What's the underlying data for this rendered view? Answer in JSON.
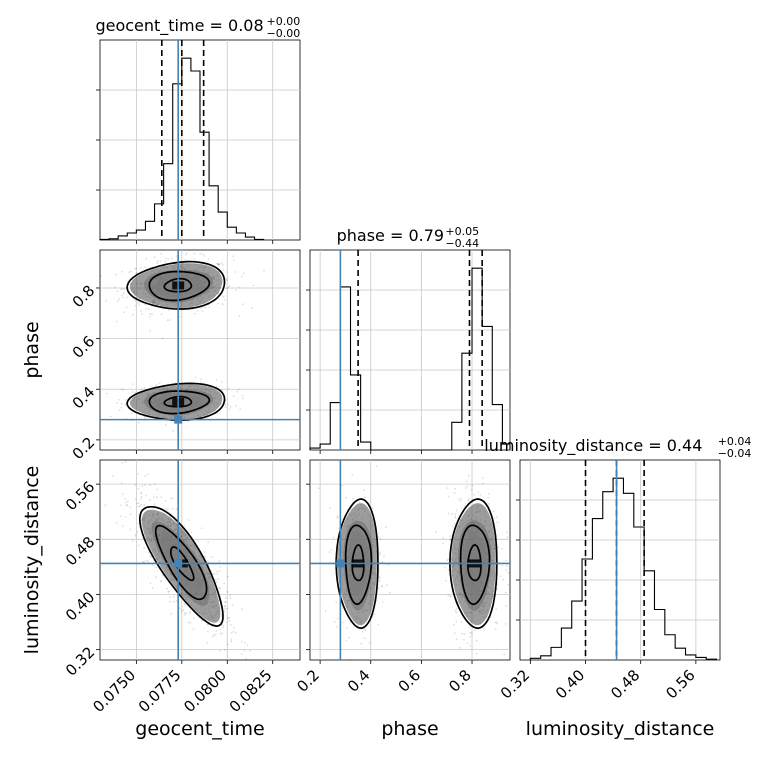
{
  "chart_data": {
    "type": "corner",
    "parameters": [
      "geocent_time",
      "phase",
      "luminosity_distance"
    ],
    "truths": {
      "geocent_time": 0.0773,
      "phase": 0.28,
      "luminosity_distance": 0.445
    },
    "truth_color": "#4682b4",
    "titles": [
      {
        "param": "geocent_time",
        "text": "geocent_time = 0.08",
        "sup": "+0.00",
        "sub": "−0.00"
      },
      {
        "param": "phase",
        "text": "phase = 0.79",
        "sup": "+0.05",
        "sub": "−0.44"
      },
      {
        "param": "luminosity_distance",
        "text": "luminosity_distance = 0.44",
        "sup": "+0.04",
        "sub": "−0.04"
      }
    ],
    "axes": {
      "geocent_time": {
        "label": "geocent_time",
        "range": [
          0.073,
          0.084
        ],
        "ticks": [
          0.075,
          0.0775,
          0.08,
          0.0825
        ],
        "tick_labels": [
          "0.0750",
          "0.0775",
          "0.0800",
          "0.0825"
        ]
      },
      "phase": {
        "label": "phase",
        "range": [
          0.16,
          0.95
        ],
        "ticks": [
          0.2,
          0.4,
          0.6,
          0.8
        ],
        "tick_labels": [
          "0.2",
          "0.4",
          "0.6",
          "0.8"
        ]
      },
      "luminosity_distance": {
        "label": "luminosity_distance",
        "range": [
          0.305,
          0.595
        ],
        "ticks": [
          0.32,
          0.4,
          0.48,
          0.56
        ],
        "tick_labels": [
          "0.32",
          "0.40",
          "0.48",
          "0.56"
        ]
      }
    },
    "quantile_lines": {
      "geocent_time": [
        0.0764,
        0.0775,
        0.0787
      ],
      "phase": [
        0.35,
        0.79,
        0.84
      ],
      "luminosity_distance": [
        0.4,
        0.445,
        0.485
      ]
    },
    "histograms": {
      "geocent_time": {
        "bin_edges": [
          0.073,
          0.0735,
          0.074,
          0.0745,
          0.075,
          0.0755,
          0.076,
          0.0765,
          0.077,
          0.0775,
          0.078,
          0.0785,
          0.079,
          0.0795,
          0.08,
          0.0805,
          0.081,
          0.0815,
          0.082
        ],
        "counts": [
          1,
          2,
          7,
          12,
          17,
          32,
          62,
          131,
          268,
          312,
          290,
          185,
          93,
          48,
          22,
          12,
          5,
          1
        ]
      },
      "phase": {
        "bin_edges": [
          0.16,
          0.2,
          0.24,
          0.28,
          0.32,
          0.36,
          0.4,
          0.44,
          0.48,
          0.52,
          0.56,
          0.6,
          0.64,
          0.68,
          0.72,
          0.76,
          0.8,
          0.84,
          0.88,
          0.92,
          0.95
        ],
        "counts": [
          2,
          6,
          48,
          165,
          76,
          8,
          0,
          0,
          0,
          0,
          0,
          0,
          0,
          0,
          28,
          98,
          184,
          125,
          46,
          6
        ]
      },
      "luminosity_distance": {
        "bin_edges": [
          0.32,
          0.335,
          0.35,
          0.365,
          0.38,
          0.395,
          0.41,
          0.425,
          0.44,
          0.455,
          0.47,
          0.485,
          0.5,
          0.515,
          0.53,
          0.545,
          0.56,
          0.575,
          0.59
        ],
        "counts": [
          2,
          5,
          15,
          38,
          70,
          120,
          168,
          200,
          216,
          198,
          158,
          106,
          60,
          30,
          14,
          6,
          3,
          1
        ]
      }
    },
    "contours": [
      {
        "x": "geocent_time",
        "y": "phase",
        "mode_center": [
          0.0773,
          0.81
        ],
        "mode_spread": [
          0.0013,
          0.045
        ],
        "mode_rho": 0.1,
        "mode_weight": 0.65
      },
      {
        "x": "geocent_time",
        "y": "phase",
        "mode_center": [
          0.0773,
          0.35
        ],
        "mode_spread": [
          0.0013,
          0.035
        ],
        "mode_rho": 0.1,
        "mode_weight": 0.35
      },
      {
        "x": "geocent_time",
        "y": "luminosity_distance",
        "mode_center": [
          0.0775,
          0.445
        ],
        "mode_spread": [
          0.0011,
          0.042
        ],
        "mode_rho": -0.8,
        "mode_weight": 1.0
      },
      {
        "x": "phase",
        "y": "luminosity_distance",
        "mode_center": [
          0.35,
          0.445
        ],
        "mode_spread": [
          0.04,
          0.045
        ],
        "mode_rho": 0.0,
        "mode_weight": 0.35
      },
      {
        "x": "phase",
        "y": "luminosity_distance",
        "mode_center": [
          0.81,
          0.445
        ],
        "mode_spread": [
          0.045,
          0.045
        ],
        "mode_rho": 0.0,
        "mode_weight": 0.65
      }
    ]
  }
}
